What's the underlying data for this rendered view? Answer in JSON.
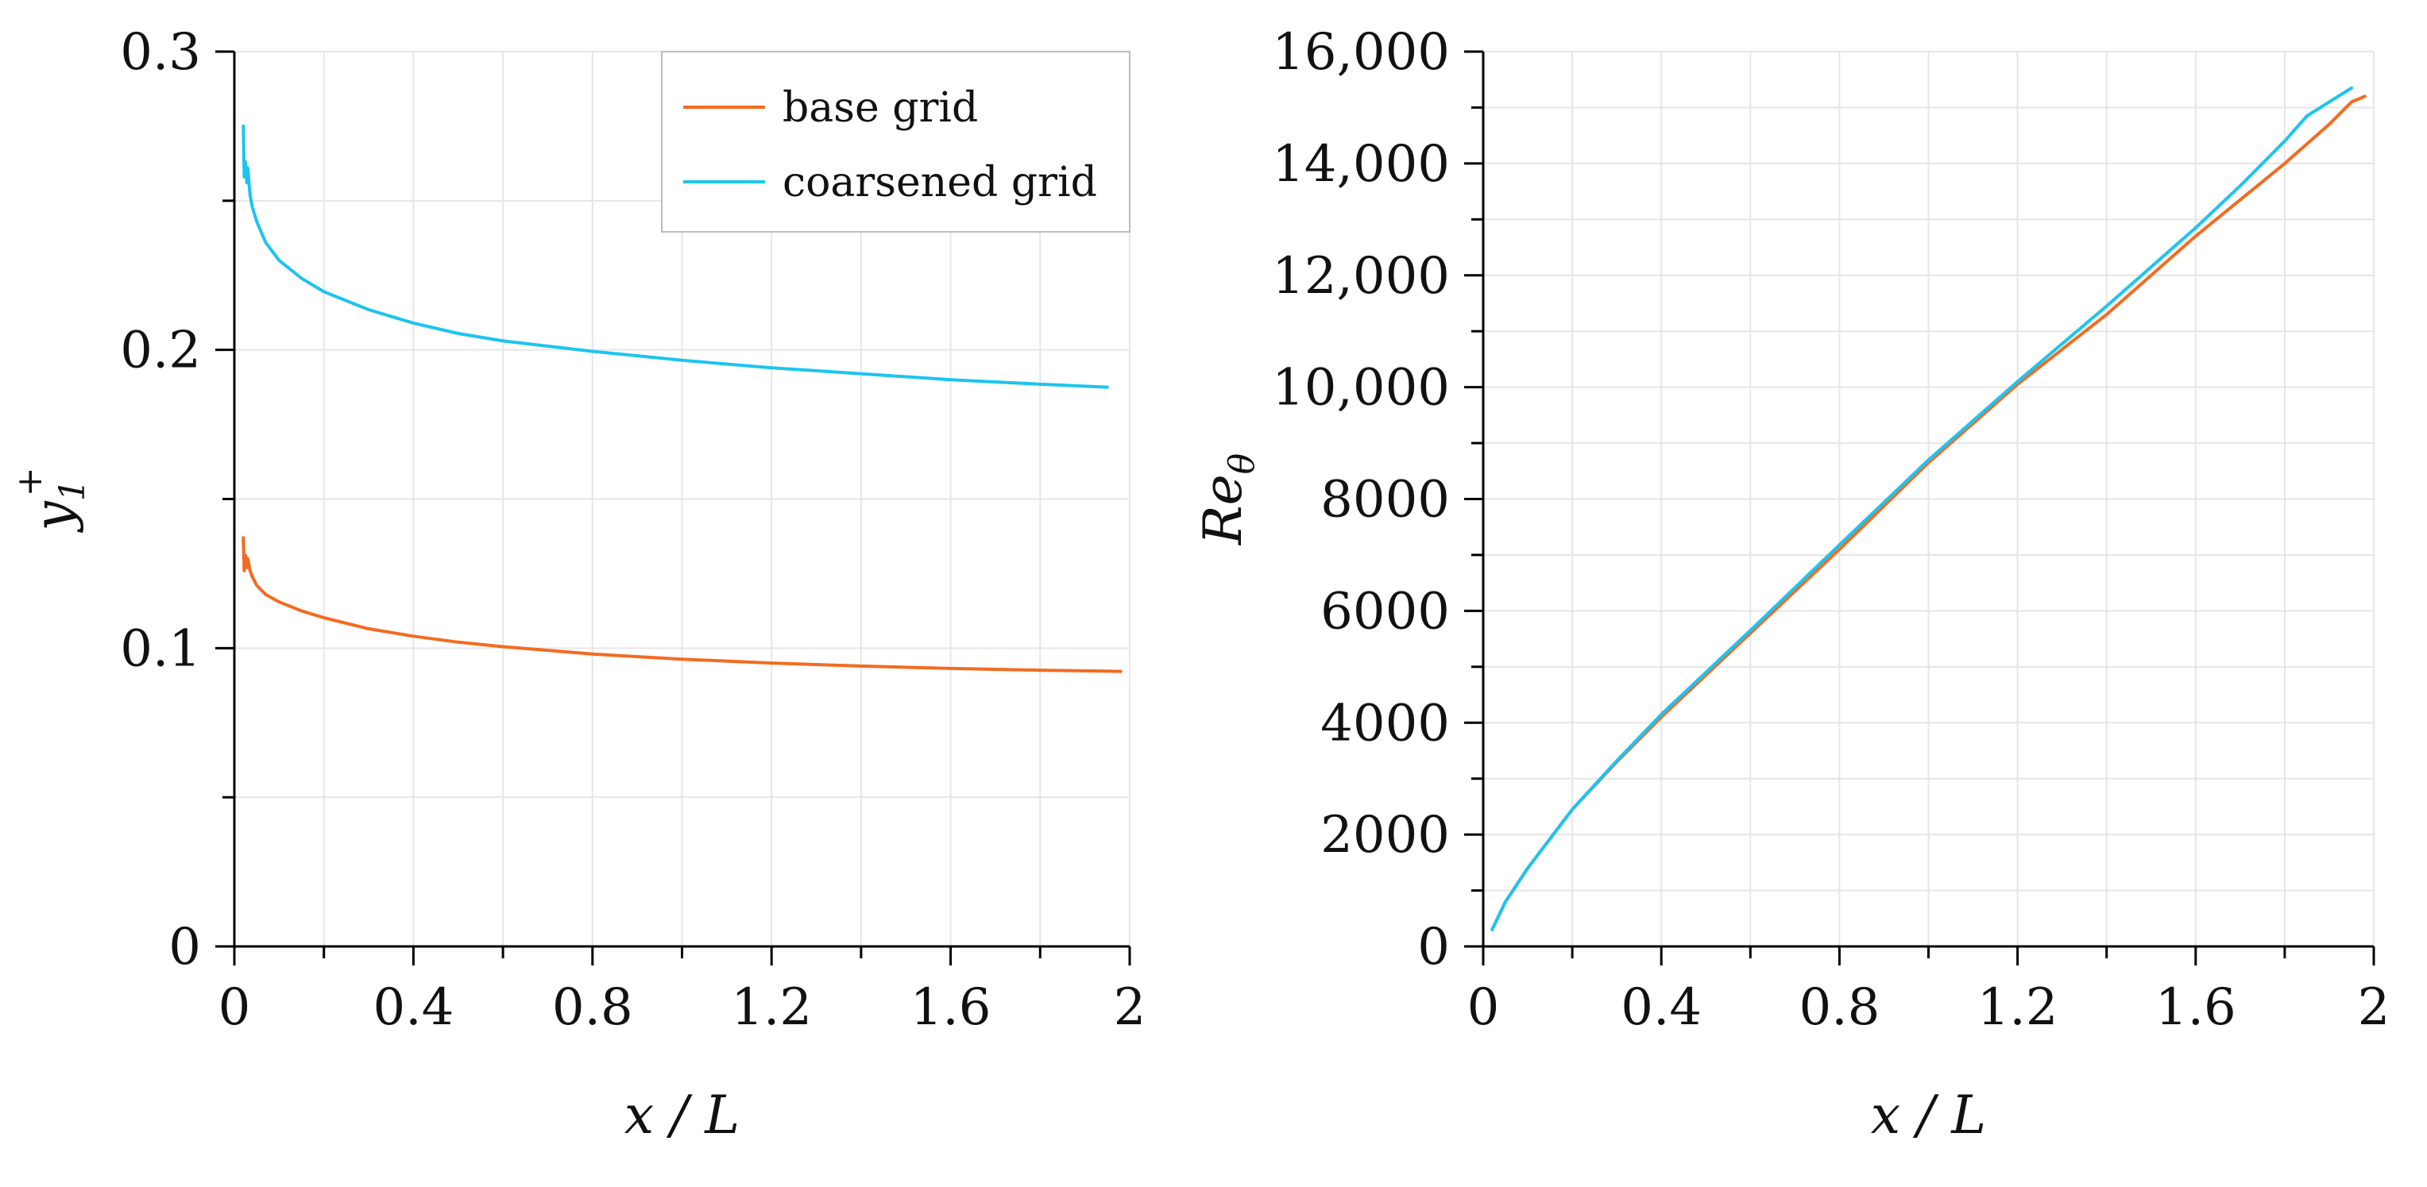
{
  "colors": {
    "base_grid": "#f26b21",
    "coarsened_grid": "#1cc4f0"
  },
  "chart_data": [
    {
      "type": "line",
      "title": "",
      "xlabel": "x / L",
      "ylabel": "y1+",
      "ylabel_main": "y",
      "ylabel_sub": "1",
      "ylabel_sup": "+",
      "xlim": [
        0,
        2
      ],
      "ylim": [
        0,
        0.3
      ],
      "xticks": [
        0,
        0.4,
        0.8,
        1.2,
        1.6,
        2
      ],
      "xtick_labels": [
        "0",
        "0.4",
        "0.8",
        "1.2",
        "1.6",
        "2"
      ],
      "xminor": [
        0.2,
        0.6,
        1.0,
        1.4,
        1.8
      ],
      "yticks": [
        0,
        0.1,
        0.2,
        0.3
      ],
      "ytick_labels": [
        "0",
        "0.1",
        "0.2",
        "0.3"
      ],
      "yminor": [
        0.05,
        0.15,
        0.25
      ],
      "grid": true,
      "legend": {
        "position": "top-right",
        "entries": [
          "base grid",
          "coarsened grid"
        ]
      },
      "series": [
        {
          "name": "base grid",
          "color_key": "base_grid",
          "x": [
            0.02,
            0.022,
            0.025,
            0.028,
            0.03,
            0.035,
            0.04,
            0.05,
            0.07,
            0.1,
            0.15,
            0.2,
            0.3,
            0.4,
            0.5,
            0.6,
            0.8,
            1.0,
            1.2,
            1.4,
            1.6,
            1.8,
            1.98
          ],
          "y": [
            0.137,
            0.126,
            0.131,
            0.127,
            0.13,
            0.126,
            0.124,
            0.121,
            0.118,
            0.1155,
            0.1125,
            0.1102,
            0.1065,
            0.104,
            0.102,
            0.1005,
            0.098,
            0.0963,
            0.095,
            0.094,
            0.0932,
            0.0926,
            0.0922
          ]
        },
        {
          "name": "coarsened grid",
          "color_key": "coarsened_grid",
          "x": [
            0.02,
            0.022,
            0.025,
            0.028,
            0.03,
            0.035,
            0.04,
            0.05,
            0.07,
            0.1,
            0.15,
            0.2,
            0.3,
            0.4,
            0.5,
            0.6,
            0.8,
            1.0,
            1.2,
            1.4,
            1.6,
            1.8,
            1.95
          ],
          "y": [
            0.275,
            0.258,
            0.263,
            0.256,
            0.261,
            0.252,
            0.248,
            0.243,
            0.236,
            0.23,
            0.224,
            0.2195,
            0.2135,
            0.209,
            0.2055,
            0.203,
            0.1995,
            0.1965,
            0.194,
            0.192,
            0.19,
            0.1885,
            0.1875
          ]
        }
      ]
    },
    {
      "type": "line",
      "title": "",
      "xlabel": "x / L",
      "ylabel": "Reθ",
      "ylabel_main": "Re",
      "ylabel_sub": "θ",
      "xlim": [
        0,
        2
      ],
      "ylim": [
        0,
        16000
      ],
      "xticks": [
        0,
        0.4,
        0.8,
        1.2,
        1.6,
        2
      ],
      "xtick_labels": [
        "0",
        "0.4",
        "0.8",
        "1.2",
        "1.6",
        "2"
      ],
      "xminor": [
        0.2,
        0.6,
        1.0,
        1.4,
        1.8
      ],
      "yticks": [
        0,
        2000,
        4000,
        6000,
        8000,
        10000,
        12000,
        14000,
        16000
      ],
      "ytick_labels": [
        "0",
        "2000",
        "4000",
        "6000",
        "8000",
        "10,000",
        "12,000",
        "14,000",
        "16,000"
      ],
      "yminor": [
        1000,
        3000,
        5000,
        7000,
        9000,
        11000,
        13000,
        15000
      ],
      "grid": true,
      "series": [
        {
          "name": "base grid",
          "color_key": "base_grid",
          "x": [
            0.02,
            0.05,
            0.1,
            0.2,
            0.3,
            0.4,
            0.6,
            0.8,
            1.0,
            1.2,
            1.4,
            1.6,
            1.8,
            1.9,
            1.95,
            1.98
          ],
          "y": [
            300,
            800,
            1400,
            2450,
            3300,
            4100,
            5600,
            7100,
            8650,
            10050,
            11300,
            12700,
            14000,
            14700,
            15100,
            15200
          ]
        },
        {
          "name": "coarsened grid",
          "color_key": "coarsened_grid",
          "x": [
            0.02,
            0.05,
            0.1,
            0.2,
            0.3,
            0.4,
            0.6,
            0.8,
            1.0,
            1.2,
            1.4,
            1.6,
            1.7,
            1.8,
            1.85,
            1.9,
            1.95
          ],
          "y": [
            300,
            800,
            1400,
            2450,
            3320,
            4150,
            5650,
            7180,
            8700,
            10100,
            11450,
            12850,
            13600,
            14400,
            14850,
            15100,
            15350
          ]
        }
      ]
    }
  ]
}
